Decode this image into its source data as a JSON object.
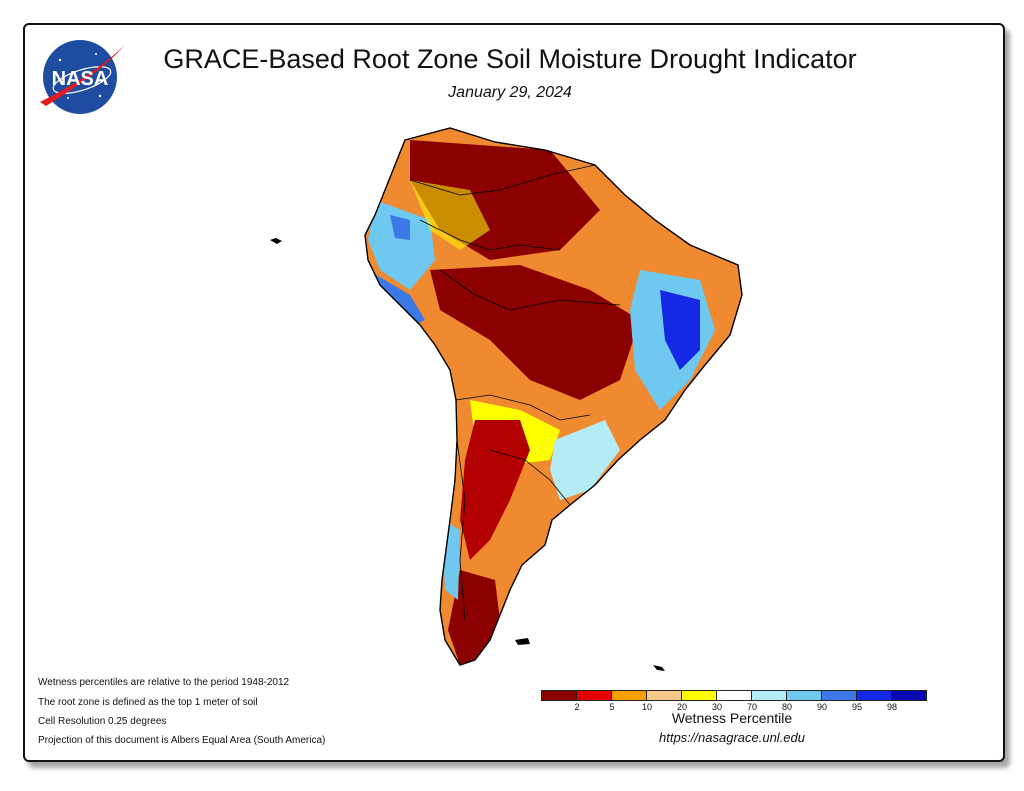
{
  "header": {
    "title": "GRACE-Based Root Zone Soil Moisture Drought Indicator",
    "date": "January 29, 2024"
  },
  "logo": {
    "text": "NASA",
    "icon": "nasa-meatball-logo"
  },
  "map": {
    "region": "South America"
  },
  "notes": [
    "Wetness percentiles are relative to the period 1948-2012",
    "The root zone is defined as the top 1 meter of soil",
    "Cell Resolution 0.25 degrees",
    "Projection of this document is Albers Equal Area (South America)"
  ],
  "legend": {
    "title": "Wetness Percentile",
    "ticks": [
      "2",
      "5",
      "10",
      "20",
      "30",
      "70",
      "80",
      "90",
      "95",
      "98"
    ],
    "colors": [
      "#8b0000",
      "#e60000",
      "#f5a000",
      "#f5c88a",
      "#ffff00",
      "#ffffff",
      "#b4ecf5",
      "#6ec8f0",
      "#3c78e6",
      "#1428e6",
      "#0a0ab4"
    ]
  },
  "footer": {
    "url": "https://nasagrace.unl.edu"
  }
}
